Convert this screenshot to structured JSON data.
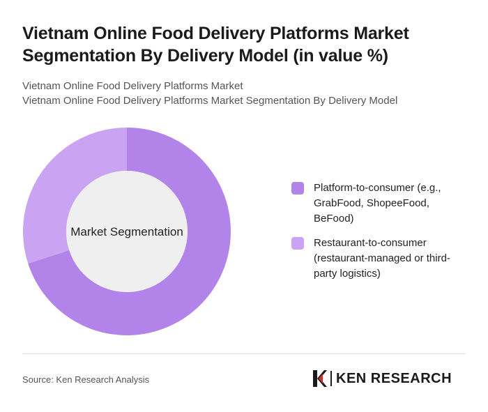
{
  "title": "Vietnam Online Food Delivery Platforms Market Segmentation By Delivery Model (in value %)",
  "subtitle_line1": "Vietnam Online Food Delivery Platforms Market",
  "subtitle_line2": "Vietnam Online Food Delivery Platforms Market Segmentation By Delivery Model",
  "center_label": "Market Segmentation",
  "source": "Source: Ken Research Analysis",
  "brand": "KEN RESEARCH",
  "chart_data": {
    "type": "pie",
    "donut": true,
    "categories": [
      "Platform-to-consumer (e.g., GrabFood, ShopeeFood, BeFood)",
      "Restaurant-to-consumer (restaurant-managed or third-party logistics)"
    ],
    "values": [
      70,
      30
    ],
    "colors": [
      "#b284ea",
      "#caa4f2"
    ],
    "center_color": "#f0eff0",
    "legend_position": "right"
  }
}
